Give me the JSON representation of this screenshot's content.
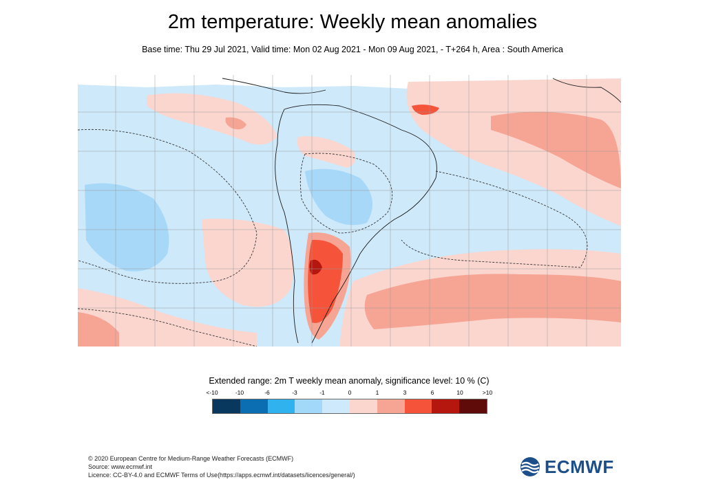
{
  "header": {
    "title": "2m temperature: Weekly mean anomalies",
    "subtitle": "Base time: Thu 29 Jul 2021, Valid time: Mon 02 Aug 2021 - Mon 09 Aug 2021, - T+264 h, Area : South America"
  },
  "legend": {
    "title": "Extended range: 2m T weekly mean anomaly, significance level: 10 % (C)",
    "ticks": [
      "<-10",
      "-10",
      "-6",
      "-3",
      "-1",
      "0",
      "1",
      "3",
      "6",
      "10",
      ">10"
    ],
    "colors": [
      "#08385d",
      "#0b6eb3",
      "#2fb2ee",
      "#a2d9f8",
      "#cde9fa",
      "#fbd6cf",
      "#f6a493",
      "#f5533a",
      "#b5170e",
      "#5e0b09"
    ]
  },
  "map_colors": {
    "strong_cold": "#a8d8f7",
    "weak_cold": "#cde9fa",
    "weak_warm": "#fbd6cf",
    "moderate_warm": "#f6a493",
    "strong_warm": "#f5533a",
    "very_strong_warm": "#b5170e",
    "coast": "#1a1a1a",
    "grid": "#9a9a9a"
  },
  "footer": {
    "line1": "© 2020 European Centre for Medium-Range Weather Forecasts (ECMWF)",
    "line2": "Source: www.ecmwf.int",
    "line3": "Licence: CC-BY-4.0 and ECMWF Terms of Use(https://apps.ecmwf.int/datasets/licences/general/)"
  },
  "logo": {
    "text": "ECMWF",
    "icon": "ecmwf-logo-icon"
  }
}
